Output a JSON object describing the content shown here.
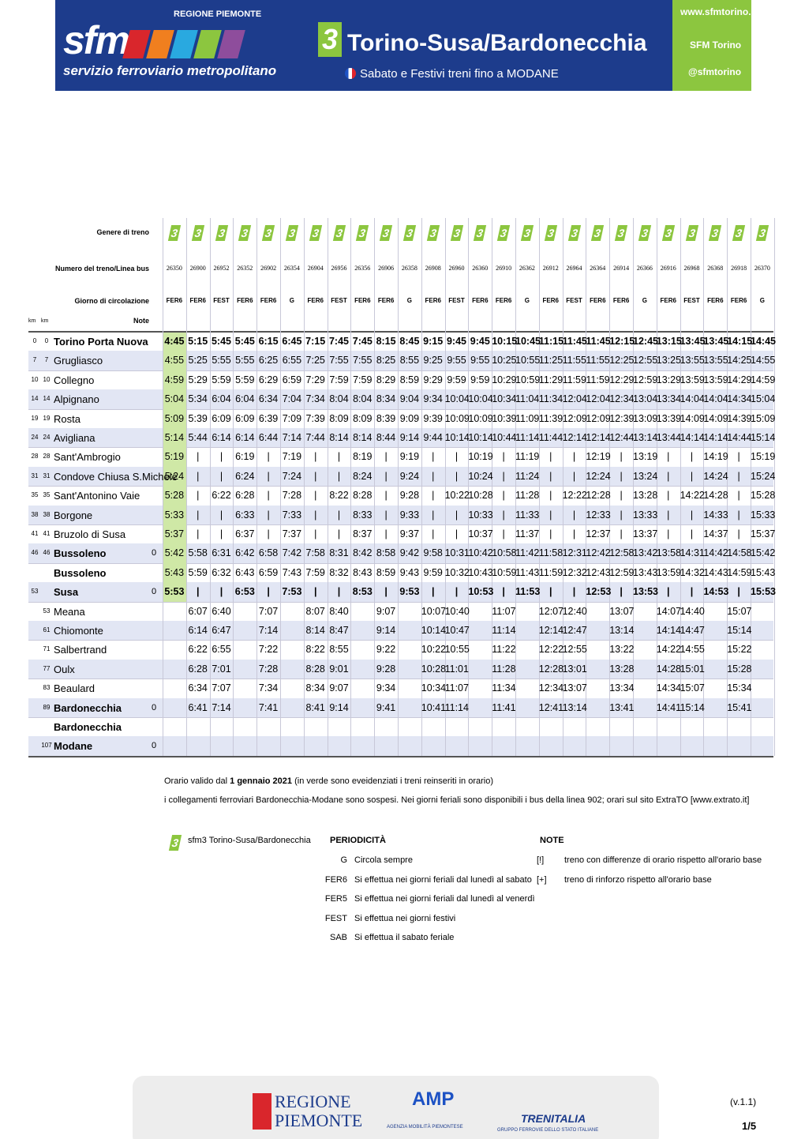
{
  "header": {
    "region": "REGIONE PIEMONTE",
    "logo": "sfm",
    "logo_sub": "servizio ferroviario metropolitano",
    "line_number": "3",
    "line_name": "Torino-Susa/Bardonecchia",
    "subtitle": "Sabato e Festivi treni fino a MODANE",
    "website": "www.sfmtorino.it",
    "facebook": "SFM Torino",
    "twitter": "@sfmtorino"
  },
  "timetable": {
    "row_labels": {
      "genere": "Genere di treno",
      "numero": "Numero del treno/Linea bus",
      "giorno": "Giorno di circolazione",
      "km_a": "km",
      "km_b": "km",
      "note": "Note"
    },
    "genere": [
      "3",
      "3",
      "3",
      "3",
      "3",
      "3",
      "3",
      "3",
      "3",
      "3",
      "3",
      "3",
      "3",
      "3",
      "3",
      "3",
      "3",
      "3",
      "3",
      "3",
      "3",
      "3",
      "3",
      "3",
      "3",
      "3"
    ],
    "trains": [
      26350,
      26900,
      26952,
      26352,
      26902,
      26354,
      26904,
      26956,
      26356,
      26906,
      26358,
      26908,
      26960,
      26360,
      26910,
      26362,
      26912,
      26964,
      26364,
      26914,
      26366,
      26916,
      26968,
      26368,
      26918,
      26370
    ],
    "days": [
      "FER6",
      "FER6",
      "FEST",
      "FER6",
      "FER6",
      "G",
      "FER6",
      "FEST",
      "FER6",
      "FER6",
      "G",
      "FER6",
      "FEST",
      "FER6",
      "FER6",
      "G",
      "FER6",
      "FEST",
      "FER6",
      "FER6",
      "G",
      "FER6",
      "FEST",
      "FER6",
      "FER6",
      "G"
    ],
    "stations": [
      {
        "km_a": 0,
        "km_b": 0,
        "name": "Torino Porta Nuova",
        "note": null,
        "times": [
          "4:45",
          "5:15",
          "5:45",
          "5:45",
          "6:15",
          "6:45",
          "7:15",
          "7:45",
          "7:45",
          "8:15",
          "8:45",
          "9:15",
          "9:45",
          "9:45",
          "10:15",
          "10:45",
          "11:15",
          "11:45",
          "11:45",
          "12:15",
          "12:45",
          "13:15",
          "13:45",
          "13:45",
          "14:15",
          "14:45"
        ]
      },
      {
        "km_a": 7,
        "km_b": 7,
        "name": "Grugliasco",
        "note": null,
        "times": [
          "4:55",
          "5:25",
          "5:55",
          "5:55",
          "6:25",
          "6:55",
          "7:25",
          "7:55",
          "7:55",
          "8:25",
          "8:55",
          "9:25",
          "9:55",
          "9:55",
          "10:25",
          "10:55",
          "11:25",
          "11:55",
          "11:55",
          "12:25",
          "12:55",
          "13:25",
          "13:55",
          "13:55",
          "14:25",
          "14:55"
        ]
      },
      {
        "km_a": 10,
        "km_b": 10,
        "name": "Collegno",
        "note": null,
        "times": [
          "4:59",
          "5:29",
          "5:59",
          "5:59",
          "6:29",
          "6:59",
          "7:29",
          "7:59",
          "7:59",
          "8:29",
          "8:59",
          "9:29",
          "9:59",
          "9:59",
          "10:29",
          "10:59",
          "11:29",
          "11:59",
          "11:59",
          "12:29",
          "12:59",
          "13:29",
          "13:59",
          "13:59",
          "14:29",
          "14:59"
        ]
      },
      {
        "km_a": 14,
        "km_b": 14,
        "name": "Alpignano",
        "note": null,
        "times": [
          "5:04",
          "5:34",
          "6:04",
          "6:04",
          "6:34",
          "7:04",
          "7:34",
          "8:04",
          "8:04",
          "8:34",
          "9:04",
          "9:34",
          "10:04",
          "10:04",
          "10:34",
          "11:04",
          "11:34",
          "12:04",
          "12:04",
          "12:34",
          "13:04",
          "13:34",
          "14:04",
          "14:04",
          "14:34",
          "15:04"
        ]
      },
      {
        "km_a": 19,
        "km_b": 19,
        "name": "Rosta",
        "note": null,
        "times": [
          "5:09",
          "5:39",
          "6:09",
          "6:09",
          "6:39",
          "7:09",
          "7:39",
          "8:09",
          "8:09",
          "8:39",
          "9:09",
          "9:39",
          "10:09",
          "10:09",
          "10:39",
          "11:09",
          "11:39",
          "12:09",
          "12:09",
          "12:39",
          "13:09",
          "13:39",
          "14:09",
          "14:09",
          "14:39",
          "15:09"
        ]
      },
      {
        "km_a": 24,
        "km_b": 24,
        "name": "Avigliana",
        "note": null,
        "times": [
          "5:14",
          "5:44",
          "6:14",
          "6:14",
          "6:44",
          "7:14",
          "7:44",
          "8:14",
          "8:14",
          "8:44",
          "9:14",
          "9:44",
          "10:14",
          "10:14",
          "10:44",
          "11:14",
          "11:44",
          "12:14",
          "12:14",
          "12:44",
          "13:14",
          "13:44",
          "14:14",
          "14:14",
          "14:44",
          "15:14"
        ]
      },
      {
        "km_a": 28,
        "km_b": 28,
        "name": "Sant'Ambrogio",
        "note": null,
        "times": [
          "5:19",
          "|",
          "|",
          "6:19",
          "|",
          "7:19",
          "|",
          "|",
          "8:19",
          "|",
          "9:19",
          "|",
          "|",
          "10:19",
          "|",
          "11:19",
          "|",
          "|",
          "12:19",
          "|",
          "13:19",
          "|",
          "|",
          "14:19",
          "|",
          "15:19"
        ]
      },
      {
        "km_a": 31,
        "km_b": 31,
        "name": "Condove Chiusa S.Michele",
        "note": null,
        "times": [
          "5:24",
          "|",
          "|",
          "6:24",
          "|",
          "7:24",
          "|",
          "|",
          "8:24",
          "|",
          "9:24",
          "|",
          "|",
          "10:24",
          "|",
          "11:24",
          "|",
          "|",
          "12:24",
          "|",
          "13:24",
          "|",
          "|",
          "14:24",
          "|",
          "15:24"
        ]
      },
      {
        "km_a": 35,
        "km_b": 35,
        "name": "Sant'Antonino Vaie",
        "note": null,
        "times": [
          "5:28",
          "|",
          "6:22",
          "6:28",
          "|",
          "7:28",
          "|",
          "8:22",
          "8:28",
          "|",
          "9:28",
          "|",
          "10:22",
          "10:28",
          "|",
          "11:28",
          "|",
          "12:22",
          "12:28",
          "|",
          "13:28",
          "|",
          "14:22",
          "14:28",
          "|",
          "15:28"
        ]
      },
      {
        "km_a": 38,
        "km_b": 38,
        "name": "Borgone",
        "note": null,
        "times": [
          "5:33",
          "|",
          "|",
          "6:33",
          "|",
          "7:33",
          "|",
          "|",
          "8:33",
          "|",
          "9:33",
          "|",
          "|",
          "10:33",
          "|",
          "11:33",
          "|",
          "|",
          "12:33",
          "|",
          "13:33",
          "|",
          "|",
          "14:33",
          "|",
          "15:33"
        ]
      },
      {
        "km_a": 41,
        "km_b": 41,
        "name": "Bruzolo di Susa",
        "note": null,
        "times": [
          "5:37",
          "|",
          "|",
          "6:37",
          "|",
          "7:37",
          "|",
          "|",
          "8:37",
          "|",
          "9:37",
          "|",
          "|",
          "10:37",
          "|",
          "11:37",
          "|",
          "|",
          "12:37",
          "|",
          "13:37",
          "|",
          "|",
          "14:37",
          "|",
          "15:37"
        ]
      },
      {
        "km_a": 46,
        "km_b": 46,
        "name": "Bussoleno",
        "note": 0,
        "times": [
          "5:42",
          "5:58",
          "6:31",
          "6:42",
          "6:58",
          "7:42",
          "7:58",
          "8:31",
          "8:42",
          "8:58",
          "9:42",
          "9:58",
          "10:31",
          "10:42",
          "10:58",
          "11:42",
          "11:58",
          "12:31",
          "12:42",
          "12:58",
          "13:42",
          "13:58",
          "14:31",
          "14:42",
          "14:58",
          "15:42"
        ]
      },
      {
        "km_a": null,
        "km_b": null,
        "name": "Bussoleno",
        "note": null,
        "times": [
          "5:43",
          "5:59",
          "6:32",
          "6:43",
          "6:59",
          "7:43",
          "7:59",
          "8:32",
          "8:43",
          "8:59",
          "9:43",
          "9:59",
          "10:32",
          "10:43",
          "10:59",
          "11:43",
          "11:59",
          "12:32",
          "12:43",
          "12:59",
          "13:43",
          "13:59",
          "14:32",
          "14:43",
          "14:59",
          "15:43"
        ]
      },
      {
        "km_a": 53,
        "km_b": null,
        "name": "Susa",
        "note": 0,
        "times": [
          "5:53",
          "|",
          "|",
          "6:53",
          "|",
          "7:53",
          "|",
          "|",
          "8:53",
          "|",
          "9:53",
          "|",
          "|",
          "10:53",
          "|",
          "11:53",
          "|",
          "|",
          "12:53",
          "|",
          "13:53",
          "|",
          "|",
          "14:53",
          "|",
          "15:53"
        ]
      },
      {
        "km_a": null,
        "km_b": 53,
        "name": "Meana",
        "note": null,
        "times": [
          null,
          "6:07",
          "6:40",
          null,
          "7:07",
          null,
          "8:07",
          "8:40",
          null,
          "9:07",
          null,
          "10:07",
          "10:40",
          null,
          "11:07",
          null,
          "12:07",
          "12:40",
          null,
          "13:07",
          null,
          "14:07",
          "14:40",
          null,
          "15:07",
          null
        ]
      },
      {
        "km_a": null,
        "km_b": 61,
        "name": "Chiomonte",
        "note": null,
        "times": [
          null,
          "6:14",
          "6:47",
          null,
          "7:14",
          null,
          "8:14",
          "8:47",
          null,
          "9:14",
          null,
          "10:14",
          "10:47",
          null,
          "11:14",
          null,
          "12:14",
          "12:47",
          null,
          "13:14",
          null,
          "14:14",
          "14:47",
          null,
          "15:14",
          null
        ]
      },
      {
        "km_a": null,
        "km_b": 71,
        "name": "Salbertrand",
        "note": null,
        "times": [
          null,
          "6:22",
          "6:55",
          null,
          "7:22",
          null,
          "8:22",
          "8:55",
          null,
          "9:22",
          null,
          "10:22",
          "10:55",
          null,
          "11:22",
          null,
          "12:22",
          "12:55",
          null,
          "13:22",
          null,
          "14:22",
          "14:55",
          null,
          "15:22",
          null
        ]
      },
      {
        "km_a": null,
        "km_b": 77,
        "name": "Oulx",
        "note": null,
        "times": [
          null,
          "6:28",
          "7:01",
          null,
          "7:28",
          null,
          "8:28",
          "9:01",
          null,
          "9:28",
          null,
          "10:28",
          "11:01",
          null,
          "11:28",
          null,
          "12:28",
          "13:01",
          null,
          "13:28",
          null,
          "14:28",
          "15:01",
          null,
          "15:28",
          null
        ]
      },
      {
        "km_a": null,
        "km_b": 83,
        "name": "Beaulard",
        "note": null,
        "times": [
          null,
          "6:34",
          "7:07",
          null,
          "7:34",
          null,
          "8:34",
          "9:07",
          null,
          "9:34",
          null,
          "10:34",
          "11:07",
          null,
          "11:34",
          null,
          "12:34",
          "13:07",
          null,
          "13:34",
          null,
          "14:34",
          "15:07",
          null,
          "15:34",
          null
        ]
      },
      {
        "km_a": null,
        "km_b": 89,
        "name": "Bardonecchia",
        "note": 0,
        "times": [
          null,
          "6:41",
          "7:14",
          null,
          "7:41",
          null,
          "8:41",
          "9:14",
          null,
          "9:41",
          null,
          "10:41",
          "11:14",
          null,
          "11:41",
          null,
          "12:41",
          "13:14",
          null,
          "13:41",
          null,
          "14:41",
          "15:14",
          null,
          "15:41",
          null
        ]
      },
      {
        "km_a": null,
        "km_b": null,
        "name": "Bardonecchia",
        "note": null,
        "times": [
          null,
          null,
          null,
          null,
          null,
          null,
          null,
          null,
          null,
          null,
          null,
          null,
          null,
          null,
          null,
          null,
          null,
          null,
          null,
          null,
          null,
          null,
          null,
          null,
          null,
          null
        ]
      },
      {
        "km_a": null,
        "km_b": 107,
        "name": "Modane",
        "note": 0,
        "times": [
          null,
          null,
          null,
          null,
          null,
          null,
          null,
          null,
          null,
          null,
          null,
          null,
          null,
          null,
          null,
          null,
          null,
          null,
          null,
          null,
          null,
          null,
          null,
          null,
          null,
          null
        ]
      }
    ]
  },
  "notes": {
    "valid_pre": "Orario valido dal",
    "valid_date": "1 gennaio 2021",
    "valid_post": "(in verde sono eveidenziati i treni reinseriti in orario)",
    "line2": "i collegamenti ferroviari Bardonecchia-Modane sono sospesi. Nei giorni feriali sono disponibili i bus della linea 902; orari sul sito ExtraTO [www.extrato.it]"
  },
  "legend": {
    "icon": "3",
    "line": "sfm3 Torino-Susa/Bardonecchia",
    "periodicity_title": "PERIODICITÀ",
    "periodicity": [
      {
        "code": "G",
        "text": "Circola sempre"
      },
      {
        "code": "FER6",
        "text": "Si effettua nei giorni feriali dal lunedì al sabato"
      },
      {
        "code": "FER5",
        "text": "Si effettua nei giorni feriali dal lunedì al venerdì"
      },
      {
        "code": "FEST",
        "text": "Si effettua nei giorni festivi"
      },
      {
        "code": "SAB",
        "text": "Si effettua il sabato feriale"
      }
    ],
    "notes_title": "NOTE",
    "notes": [
      {
        "code": "[!]",
        "text": "treno con differenze di orario rispetto all'orario base"
      },
      {
        "code": "[+]",
        "text": "treno di rinforzo rispetto all'orario base"
      }
    ]
  },
  "footer": {
    "regione_1": "REGIONE",
    "regione_2": "PIEMONTE",
    "amp": "AMP",
    "amp_sub": "AGENZIA MOBILITÀ PIEMONTESE",
    "trenitalia": "TRENITALIA",
    "trenitalia_sub": "GRUPPO FERROVIE DELLO STATO ITALIANE",
    "version": "(v.1.1)",
    "page": "1/5"
  }
}
